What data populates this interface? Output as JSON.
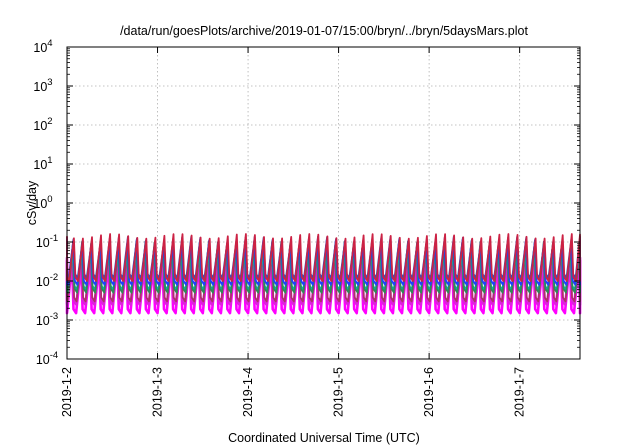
{
  "chart_data": {
    "type": "line",
    "title": "/data/run/goesPlots/archive/2019-01-07/15:00/bryn/../bryn/5daysMars.plot",
    "xlabel": "Coordinated Universal Time (UTC)",
    "ylabel": "cSv/day",
    "y_scale": "log",
    "ylim": [
      0.0001,
      10000
    ],
    "y_ticks": [
      {
        "value": 0.0001,
        "base": "10",
        "exp": "-4"
      },
      {
        "value": 0.001,
        "base": "10",
        "exp": "-3"
      },
      {
        "value": 0.01,
        "base": "10",
        "exp": "-2"
      },
      {
        "value": 0.1,
        "base": "10",
        "exp": "-1"
      },
      {
        "value": 1,
        "base": "10",
        "exp": "0"
      },
      {
        "value": 10,
        "base": "10",
        "exp": "1"
      },
      {
        "value": 100,
        "base": "10",
        "exp": "2"
      },
      {
        "value": 1000,
        "base": "10",
        "exp": "3"
      },
      {
        "value": 10000,
        "base": "10",
        "exp": "4"
      }
    ],
    "xlim": [
      "2019-01-02T00:00",
      "2019-01-07T16:00"
    ],
    "x_ticks": [
      {
        "value": "2019-01-02T00:00",
        "label": "2019-1-2"
      },
      {
        "value": "2019-01-03T00:00",
        "label": "2019-1-3"
      },
      {
        "value": "2019-01-04T00:00",
        "label": "2019-1-4"
      },
      {
        "value": "2019-01-05T00:00",
        "label": "2019-1-5"
      },
      {
        "value": "2019-01-06T00:00",
        "label": "2019-1-6"
      },
      {
        "value": "2019-01-07T00:00",
        "label": "2019-1-7"
      }
    ],
    "grid": true,
    "legend": "none",
    "sawtooth_period_hours": 2.4,
    "series": [
      {
        "color": "#ff00ff",
        "peak": 0.03,
        "trough": 0.0015
      },
      {
        "color": "#dd22dd",
        "peak": 0.04,
        "trough": 0.0025
      },
      {
        "color": "#b0306a",
        "peak": 0.06,
        "trough": 0.003
      },
      {
        "color": "#00b3b3",
        "peak": 0.06,
        "trough": 0.006
      },
      {
        "color": "#2e8b57",
        "peak": 0.09,
        "trough": 0.005
      },
      {
        "color": "#1f3fff",
        "peak": 0.1,
        "trough": 0.008
      },
      {
        "color": "#3050c0",
        "peak": 0.12,
        "trough": 0.012
      },
      {
        "color": "#cc2244",
        "peak": 0.14,
        "trough": 0.01
      }
    ]
  }
}
